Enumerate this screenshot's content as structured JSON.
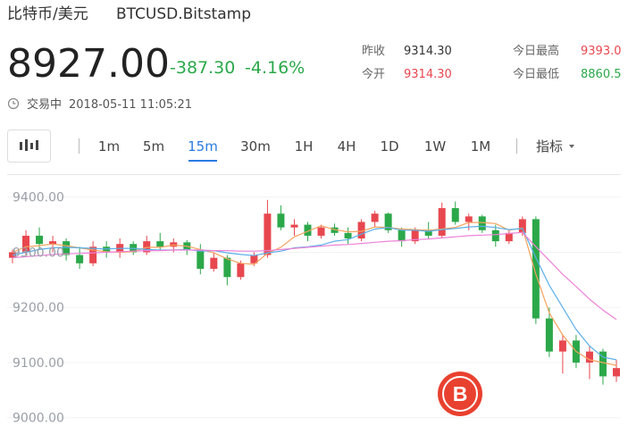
{
  "header": {
    "pair": "比特币/美元",
    "symbol": "BTCUSD.Bitstamp",
    "price": "8927.00",
    "change": "-387.30",
    "change_pct": "-4.16%",
    "status": "交易中",
    "time": "2018-05-11 11:05:21",
    "stats": [
      {
        "label": "昨收",
        "value": "9314.30"
      },
      {
        "label": "今开",
        "value": "9314.30"
      },
      {
        "label": "今日最高",
        "value": "9393.0"
      },
      {
        "label": "今日最低",
        "value": "8860.5"
      }
    ]
  },
  "toolbar": {
    "intervals": [
      "1m",
      "5m",
      "15m",
      "30m",
      "1H",
      "4H",
      "1D",
      "1W",
      "1M"
    ],
    "active": "15m",
    "indicators": "指标"
  },
  "chart_data": {
    "type": "candlestick",
    "up_color": "#e8474f",
    "down_color": "#2ba84a",
    "open": [
      9290,
      9300,
      9330,
      9315,
      9320,
      9295,
      9280,
      9310,
      9300,
      9315,
      9300,
      9320,
      9310,
      9318,
      9305,
      9270,
      9290,
      9255,
      9280,
      9295,
      9370,
      9345,
      9350,
      9330,
      9345,
      9335,
      9325,
      9355,
      9370,
      9340,
      9320,
      9340,
      9330,
      9380,
      9355,
      9365,
      9340,
      9320,
      9335,
      9360,
      9180,
      9120,
      9140,
      9100,
      9120,
      9075
    ],
    "high": [
      9305,
      9340,
      9345,
      9330,
      9325,
      9310,
      9320,
      9320,
      9325,
      9320,
      9330,
      9335,
      9325,
      9322,
      9315,
      9300,
      9295,
      9285,
      9300,
      9395,
      9385,
      9360,
      9355,
      9350,
      9352,
      9345,
      9360,
      9375,
      9372,
      9345,
      9345,
      9355,
      9390,
      9392,
      9370,
      9368,
      9350,
      9340,
      9365,
      9365,
      9200,
      9150,
      9150,
      9130,
      9125,
      9105
    ],
    "low": [
      9280,
      9295,
      9305,
      9300,
      9285,
      9270,
      9275,
      9290,
      9290,
      9295,
      9295,
      9305,
      9300,
      9295,
      9260,
      9265,
      9240,
      9250,
      9275,
      9290,
      9340,
      9330,
      9320,
      9325,
      9330,
      9315,
      9320,
      9345,
      9335,
      9310,
      9315,
      9325,
      9325,
      9350,
      9340,
      9335,
      9310,
      9315,
      9330,
      9170,
      9110,
      9080,
      9090,
      9070,
      9060,
      9065
    ],
    "close": [
      9300,
      9330,
      9315,
      9320,
      9295,
      9280,
      9310,
      9300,
      9315,
      9300,
      9320,
      9310,
      9318,
      9305,
      9270,
      9290,
      9255,
      9280,
      9295,
      9370,
      9345,
      9350,
      9330,
      9345,
      9335,
      9325,
      9355,
      9370,
      9340,
      9320,
      9340,
      9330,
      9380,
      9355,
      9365,
      9340,
      9320,
      9335,
      9360,
      9180,
      9120,
      9140,
      9100,
      9120,
      9075,
      9090
    ],
    "series": [
      {
        "color": "#f5a25d",
        "values": [
          9300,
          9310,
          9312,
          9315,
          9312,
          9308,
          9304,
          9301,
          9300,
          9301,
          9309,
          9309,
          9313,
          9311,
          9305,
          9299,
          9288,
          9280,
          9278,
          9298,
          9309,
          9328,
          9338,
          9348,
          9341,
          9337,
          9338,
          9346,
          9345,
          9342,
          9341,
          9340,
          9342,
          9345,
          9354,
          9354,
          9352,
          9340,
          9344,
          9260,
          9190,
          9150,
          9120,
          9105,
          9100,
          9095
        ]
      },
      {
        "color": "#5aaee8",
        "values": [
          9295,
          9300,
          9305,
          9308,
          9309,
          9308,
          9307,
          9306,
          9307,
          9307,
          9305,
          9304,
          9304,
          9305,
          9302,
          9303,
          9299,
          9296,
          9294,
          9299,
          9302,
          9308,
          9310,
          9313,
          9320,
          9323,
          9333,
          9342,
          9345,
          9340,
          9340,
          9338,
          9341,
          9343,
          9346,
          9347,
          9345,
          9341,
          9343,
          9290,
          9240,
          9200,
          9160,
          9130,
          9110,
          9105
        ]
      },
      {
        "color": "#ee82d8",
        "values": [
          9290,
          9292,
          9294,
          9296,
          9297,
          9298,
          9299,
          9300,
          9301,
          9302,
          9303,
          9303,
          9304,
          9304,
          9304,
          9303,
          9303,
          9302,
          9302,
          9303,
          9305,
          9307,
          9309,
          9311,
          9313,
          9314,
          9316,
          9318,
          9320,
          9321,
          9323,
          9324,
          9326,
          9328,
          9330,
          9331,
          9332,
          9334,
          9336,
          9310,
          9285,
          9260,
          9238,
          9215,
          9195,
          9178
        ]
      }
    ],
    "ylim": [
      8985,
      9440
    ],
    "yticks": [
      {
        "value": 9000,
        "label": "9000.00"
      },
      {
        "value": 9100,
        "label": "9100.00"
      },
      {
        "value": 9200,
        "label": "9200.00"
      },
      {
        "value": 9300,
        "label": "9300.00"
      },
      {
        "value": 9400,
        "label": "9400.00"
      }
    ],
    "grid": true
  }
}
